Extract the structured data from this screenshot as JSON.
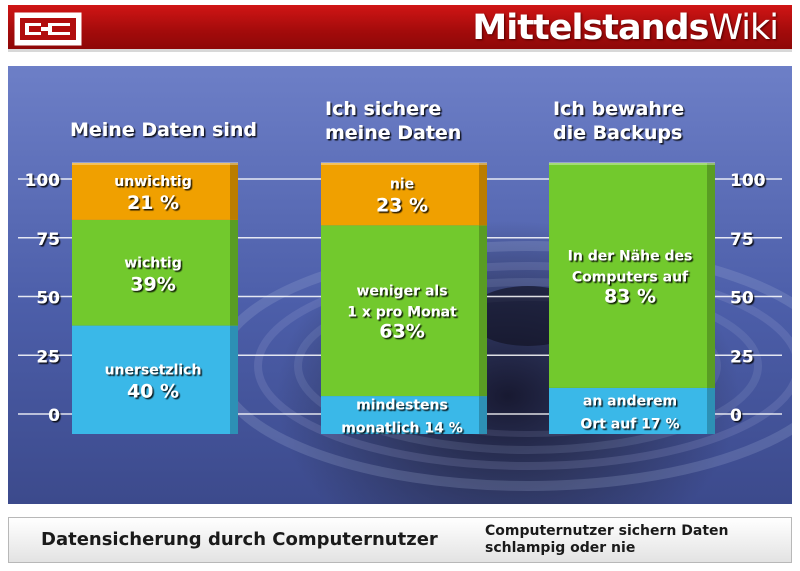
{
  "header": {
    "brand_bold": "Mittelstands",
    "brand_light": "Wiki"
  },
  "footer": {
    "title": "Datensicherung durch Computernutzer",
    "subtitle": "Computernutzer sichern Daten schlampig oder nie"
  },
  "colors": {
    "orange": "#f0a000",
    "green": "#72c92d",
    "blue": "#3ab8e8"
  },
  "chart_data": {
    "type": "bar",
    "stacked": true,
    "yticks": [
      "100",
      "75",
      "50",
      "25",
      "0"
    ],
    "ylim": [
      0,
      100
    ],
    "grid": true,
    "bars": [
      {
        "title": [
          "Meine Daten sind"
        ],
        "segments": [
          {
            "lines": [
              "unersetzlich",
              "40 %"
            ],
            "value": 40,
            "color": "blue"
          },
          {
            "lines": [
              "wichtig",
              "39%"
            ],
            "value": 39,
            "color": "green"
          },
          {
            "lines": [
              "unwichtig",
              "21 %"
            ],
            "value": 21,
            "color": "orange"
          }
        ]
      },
      {
        "title": [
          "Ich sichere",
          "meine Daten"
        ],
        "segments": [
          {
            "lines": [
              "mindestens",
              "monatlich 14 %"
            ],
            "value": 14,
            "color": "blue"
          },
          {
            "lines": [
              "weniger als",
              "1 x pro Monat",
              "63%"
            ],
            "value": 63,
            "color": "green"
          },
          {
            "lines": [
              "nie",
              "23 %"
            ],
            "value": 23,
            "color": "orange"
          }
        ]
      },
      {
        "title": [
          "Ich bewahre",
          "die Backups"
        ],
        "segments": [
          {
            "lines": [
              "an anderem",
              "Ort auf 17 %"
            ],
            "value": 17,
            "color": "blue"
          },
          {
            "lines": [
              "In der Nähe des",
              "Computers auf",
              "83 %"
            ],
            "value": 83,
            "color": "green"
          }
        ]
      }
    ]
  }
}
